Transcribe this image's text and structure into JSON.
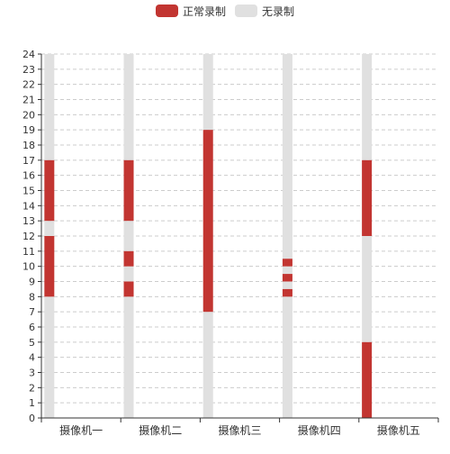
{
  "chart_data": {
    "type": "bar",
    "orientation": "vertical-range",
    "categories": [
      "摄像机一",
      "摄像机二",
      "摄像机三",
      "摄像机四",
      "摄像机五"
    ],
    "ylim": [
      0,
      24
    ],
    "y_ticks": [
      0,
      1,
      2,
      3,
      4,
      5,
      6,
      7,
      8,
      9,
      10,
      11,
      12,
      13,
      14,
      15,
      16,
      17,
      18,
      19,
      20,
      21,
      22,
      23,
      24
    ],
    "grid": "horizontal-dashed",
    "legend_position": "top-center",
    "series": [
      {
        "name": "正常录制",
        "color": "#c23531",
        "ranges": [
          [
            [
              8,
              12
            ],
            [
              13,
              17
            ]
          ],
          [
            [
              8,
              9
            ],
            [
              10,
              11
            ],
            [
              13,
              17
            ]
          ],
          [
            [
              7,
              19
            ]
          ],
          [
            [
              8,
              8.5
            ],
            [
              9,
              9.5
            ],
            [
              10,
              10.5
            ]
          ],
          [
            [
              0,
              5
            ],
            [
              12,
              17
            ]
          ]
        ]
      },
      {
        "name": "无录制",
        "color": "#e0e0e0",
        "ranges": [
          [
            [
              0,
              8
            ],
            [
              12,
              13
            ],
            [
              17,
              24
            ]
          ],
          [
            [
              0,
              8
            ],
            [
              9,
              10
            ],
            [
              11,
              13
            ],
            [
              17,
              24
            ]
          ],
          [
            [
              0,
              7
            ],
            [
              19,
              24
            ]
          ],
          [
            [
              0,
              8
            ],
            [
              8.5,
              9
            ],
            [
              9.5,
              10
            ],
            [
              10.5,
              24
            ]
          ],
          [
            [
              5,
              12
            ],
            [
              17,
              24
            ]
          ]
        ]
      }
    ],
    "colors": {
      "axis": "#333333",
      "grid": "#cccccc",
      "text": "#333333"
    }
  }
}
